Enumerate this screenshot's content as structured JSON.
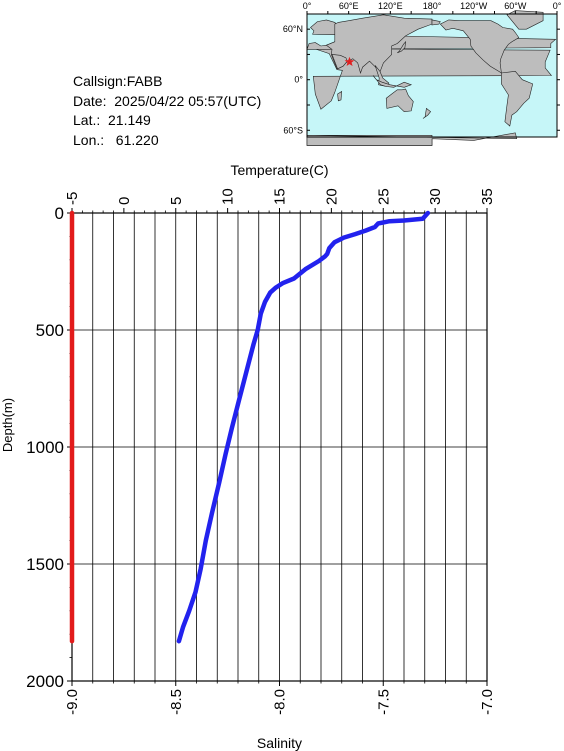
{
  "station": {
    "callsign": "Callsign:FABB",
    "date": "Date:  2025/04/22 05:57(UTC)",
    "lat": "Lat.:  21.149",
    "lon": "Lon.:   61.220"
  },
  "map": {
    "lon_labels": [
      "0°",
      "60°E",
      "120°E",
      "180°",
      "120°W",
      "60°W",
      "0°"
    ],
    "lat_labels": [
      "60°N",
      "0°",
      "60°S"
    ],
    "marker_lat": 21.149,
    "marker_lon": 61.22,
    "ocean_color": "#c6f6f8",
    "land_color": "#bdbdbd",
    "marker_color": "#e02020"
  },
  "chart_data": {
    "type": "line",
    "title": "",
    "temperature_axis": {
      "label": "Temperature(C)",
      "range": [
        -5,
        35
      ],
      "ticks": [
        -5,
        0,
        5,
        10,
        15,
        20,
        25,
        30,
        35
      ]
    },
    "salinity_axis": {
      "label": "Salinity",
      "range": [
        -9.0,
        -7.0
      ],
      "ticks": [
        "-9.0",
        "-8.5",
        "-8.0",
        "-7.5",
        "-7.0"
      ]
    },
    "depth_axis": {
      "label": "Depth(m)",
      "range": [
        0,
        2000
      ],
      "inverted": true,
      "ticks": [
        0,
        500,
        1000,
        1500,
        2000
      ]
    },
    "grid": true,
    "series": [
      {
        "name": "Temperature",
        "axis": "temperature",
        "color": "#2222ee",
        "points": [
          [
            29.3,
            0
          ],
          [
            28.8,
            25
          ],
          [
            27.0,
            32
          ],
          [
            25.6,
            35
          ],
          [
            24.5,
            45
          ],
          [
            24.2,
            60
          ],
          [
            23.3,
            75
          ],
          [
            22.3,
            90
          ],
          [
            21.2,
            105
          ],
          [
            20.3,
            125
          ],
          [
            19.8,
            150
          ],
          [
            19.6,
            175
          ],
          [
            19.4,
            185
          ],
          [
            18.8,
            205
          ],
          [
            17.5,
            240
          ],
          [
            16.4,
            280
          ],
          [
            15.3,
            300
          ],
          [
            14.6,
            320
          ],
          [
            14.1,
            340
          ],
          [
            13.6,
            380
          ],
          [
            13.2,
            430
          ],
          [
            12.9,
            500
          ],
          [
            12.5,
            560
          ],
          [
            11.8,
            680
          ],
          [
            11.1,
            800
          ],
          [
            10.4,
            920
          ],
          [
            9.8,
            1030
          ],
          [
            9.2,
            1150
          ],
          [
            8.5,
            1280
          ],
          [
            7.9,
            1400
          ],
          [
            7.4,
            1520
          ],
          [
            6.9,
            1620
          ],
          [
            6.3,
            1700
          ],
          [
            5.7,
            1770
          ],
          [
            5.3,
            1830
          ]
        ]
      },
      {
        "name": "Salinity",
        "axis": "salinity",
        "color": "#e21b1b",
        "points": [
          [
            -9.0,
            0
          ],
          [
            -9.0,
            500
          ],
          [
            -9.0,
            1000
          ],
          [
            -9.0,
            1500
          ],
          [
            -9.0,
            1830
          ]
        ]
      }
    ]
  }
}
